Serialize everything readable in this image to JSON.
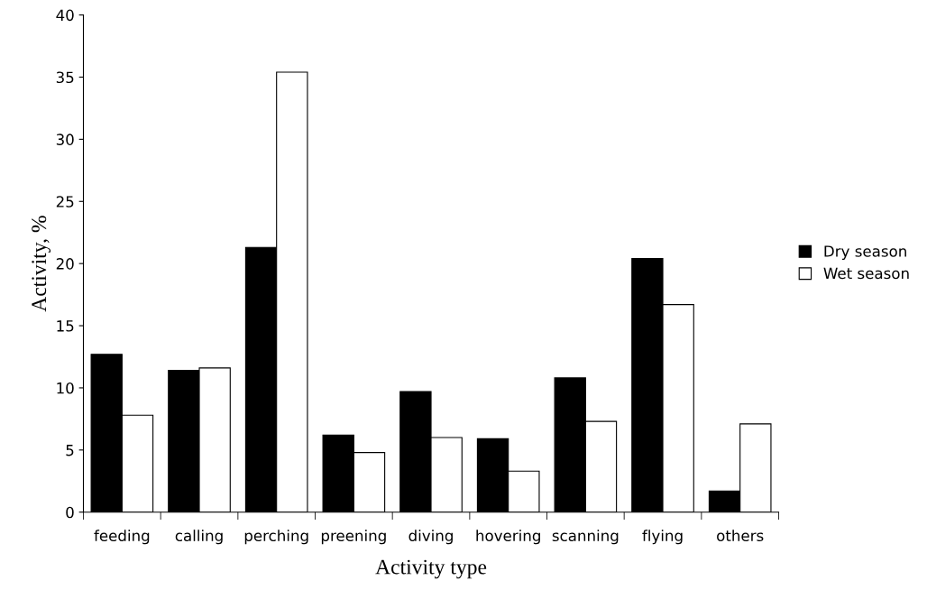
{
  "chart_data": {
    "type": "bar",
    "xlabel": "Activity type",
    "ylabel": "Activity, %",
    "categories": [
      "feeding",
      "calling",
      "perching",
      "preening",
      "diving",
      "hovering",
      "scanning",
      "flying",
      "others"
    ],
    "series": [
      {
        "name": "Dry season",
        "color": "#000000",
        "values": [
          12.7,
          11.4,
          21.3,
          6.2,
          9.7,
          5.9,
          10.8,
          20.4,
          1.7
        ]
      },
      {
        "name": "Wet season",
        "color": "#ffffff",
        "values": [
          7.8,
          11.6,
          35.4,
          4.8,
          6.0,
          3.3,
          7.3,
          16.7,
          7.1
        ]
      }
    ],
    "ylim": [
      0,
      40
    ],
    "yticks": [
      0,
      5,
      10,
      15,
      20,
      25,
      30,
      35,
      40
    ],
    "grid": false,
    "legend": "right"
  }
}
